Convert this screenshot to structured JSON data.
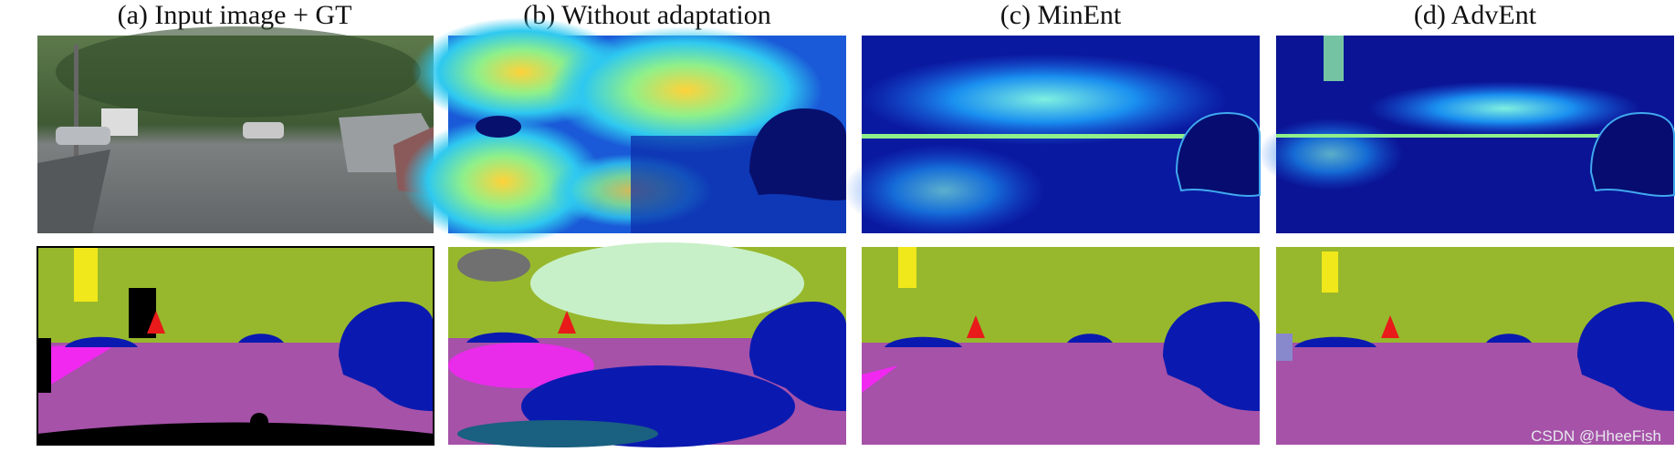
{
  "columns": [
    {
      "title": "(a) Input image + GT"
    },
    {
      "title": "(b) Without adaptation"
    },
    {
      "title": "(c) MinEnt"
    },
    {
      "title": "(d) AdvEnt"
    }
  ],
  "watermark": "CSDN @HheeFish"
}
